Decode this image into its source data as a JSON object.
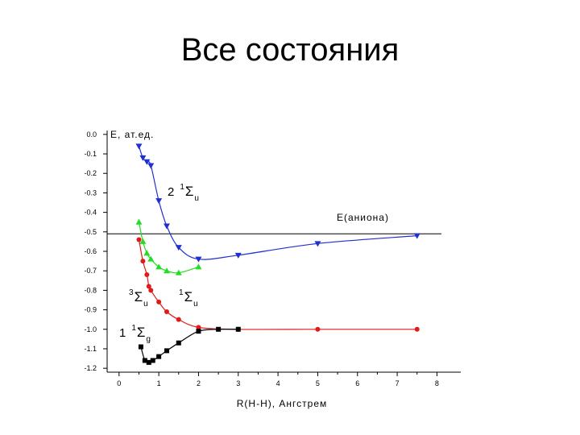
{
  "slide": {
    "title": "Все состояния"
  },
  "chart_data": {
    "type": "line",
    "ylabel": "E, ат.ед.",
    "xlabel": "R(H-H), Ангстрем",
    "xlim": [
      -0.3,
      8.6
    ],
    "ylim": [
      -1.22,
      0.02
    ],
    "x_ticks": [
      "0",
      "1",
      "2",
      "3",
      "4",
      "5",
      "6",
      "7",
      "8"
    ],
    "y_ticks": [
      "0.0",
      "-0.1",
      "-0.2",
      "-0.3",
      "-0.4",
      "-0.5",
      "-0.6",
      "-0.7",
      "-0.8",
      "-0.9",
      "-1.0",
      "-1.1",
      "-1.2"
    ],
    "grid": false,
    "reference_line": {
      "y": -0.51,
      "label": "E(аниона)"
    },
    "series": [
      {
        "color": "#1f2fd0",
        "marker": "triangle-down",
        "label_prefix": "2",
        "label_sup": "1",
        "label_sym": "Σ",
        "label_sub": "u",
        "x": [
          0.5,
          0.6,
          0.7,
          0.8,
          1.0,
          1.2,
          1.5,
          2.0,
          3.0,
          5.0,
          7.5
        ],
        "y": [
          -0.06,
          -0.12,
          -0.14,
          -0.16,
          -0.34,
          -0.47,
          -0.58,
          -0.64,
          -0.62,
          -0.56,
          -0.52
        ]
      },
      {
        "color": "#22dd22",
        "marker": "triangle-up",
        "label_prefix": "",
        "label_sup": "1",
        "label_sym": "Σ",
        "label_sub": "u",
        "x": [
          0.5,
          0.6,
          0.7,
          0.8,
          1.0,
          1.2,
          1.5,
          2.0
        ],
        "y": [
          -0.45,
          -0.55,
          -0.61,
          -0.64,
          -0.68,
          -0.7,
          -0.71,
          -0.68
        ]
      },
      {
        "color": "#e01a1a",
        "marker": "circle",
        "label_prefix": "",
        "label_sup": "3",
        "label_sym": "Σ",
        "label_sub": "u",
        "x": [
          0.5,
          0.6,
          0.7,
          0.75,
          0.8,
          1.0,
          1.2,
          1.5,
          2.0,
          3.0,
          5.0,
          7.5
        ],
        "y": [
          -0.54,
          -0.65,
          -0.72,
          -0.78,
          -0.8,
          -0.86,
          -0.91,
          -0.95,
          -0.99,
          -1.0,
          -1.0,
          -1.0
        ]
      },
      {
        "color": "#000000",
        "marker": "square",
        "label_prefix": "1",
        "label_sup": "1",
        "label_sym": "Σ",
        "label_sub": "g",
        "x": [
          0.55,
          0.65,
          0.75,
          0.85,
          1.0,
          1.2,
          1.5,
          2.0,
          2.5,
          3.0
        ],
        "y": [
          -1.09,
          -1.16,
          -1.17,
          -1.16,
          -1.14,
          -1.11,
          -1.07,
          -1.01,
          -1.0,
          -1.0
        ]
      }
    ]
  }
}
